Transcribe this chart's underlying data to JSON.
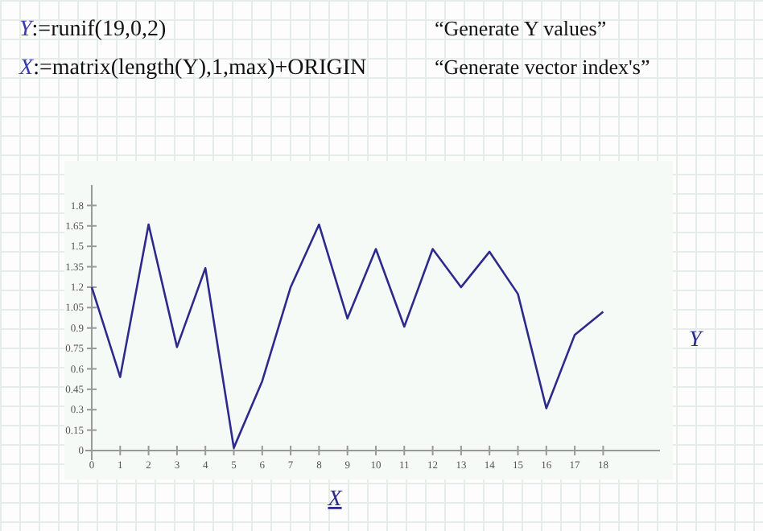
{
  "chart_data": {
    "type": "line",
    "xlabel": "X",
    "ylabel": "Y",
    "annotations": [
      "Y:=runif(19,0,2)",
      "X:=matrix(length(Y),1,max)+ORIGIN",
      "“Generate Y values”",
      "“Generate vector index's”"
    ],
    "x": [
      0,
      1,
      2,
      3,
      4,
      5,
      6,
      7,
      8,
      9,
      10,
      11,
      12,
      13,
      14,
      15,
      16,
      17,
      18
    ],
    "series": [
      {
        "color": "#2e2a8c",
        "values": [
          1.2,
          0.54,
          1.66,
          0.76,
          1.34,
          0.02,
          0.51,
          1.2,
          1.66,
          0.97,
          1.48,
          0.91,
          1.48,
          1.2,
          1.46,
          1.15,
          0.31,
          0.85,
          1.02
        ]
      }
    ],
    "xlim": [
      0,
      20
    ],
    "ylim": [
      0,
      1.95
    ],
    "xticks": [
      0,
      1,
      2,
      3,
      4,
      5,
      6,
      7,
      8,
      9,
      10,
      11,
      12,
      13,
      14,
      15,
      16,
      17,
      18
    ],
    "yticks": [
      0,
      0.15,
      0.3,
      0.45,
      0.6,
      0.75,
      0.9,
      1.05,
      1.2,
      1.35,
      1.5,
      1.65,
      1.8
    ],
    "grid": false,
    "marker": "none",
    "line_style": "solid"
  }
}
